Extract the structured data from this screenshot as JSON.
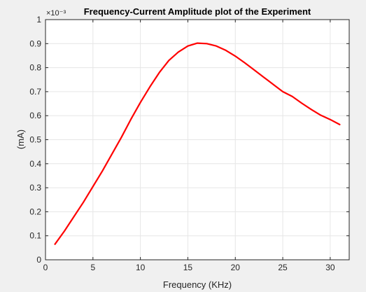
{
  "chart_data": {
    "type": "line",
    "title": "Frequency-Current Amplitude plot of the Experiment",
    "xlabel": "Frequency (KHz)",
    "ylabel": "(mA)",
    "y_exponent": "×10⁻³",
    "xlim": [
      0,
      32
    ],
    "ylim": [
      0,
      1
    ],
    "xticks": [
      0,
      5,
      10,
      15,
      20,
      25,
      30
    ],
    "yticks": [
      0,
      0.1,
      0.2,
      0.3,
      0.4,
      0.5,
      0.6,
      0.7,
      0.8,
      0.9,
      1
    ],
    "grid": true,
    "series": [
      {
        "color": "#ff0000",
        "x": [
          1,
          2,
          3,
          4,
          5,
          6,
          7,
          8,
          9,
          10,
          11,
          12,
          13,
          14,
          15,
          16,
          17,
          18,
          19,
          20,
          21,
          22,
          23,
          24,
          25,
          26,
          27,
          28,
          29,
          30,
          31
        ],
        "y": [
          0.065,
          0.12,
          0.18,
          0.24,
          0.305,
          0.37,
          0.44,
          0.51,
          0.585,
          0.655,
          0.72,
          0.78,
          0.83,
          0.865,
          0.89,
          0.902,
          0.9,
          0.89,
          0.872,
          0.848,
          0.82,
          0.79,
          0.76,
          0.73,
          0.7,
          0.68,
          0.652,
          0.626,
          0.602,
          0.584,
          0.563
        ]
      }
    ]
  }
}
